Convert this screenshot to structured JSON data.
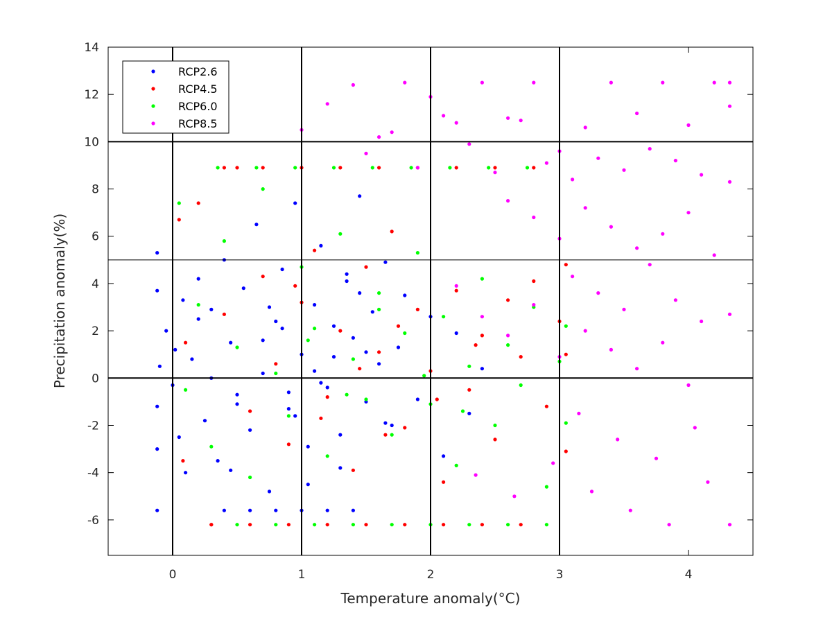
{
  "chart_data": {
    "type": "scatter",
    "title": "",
    "xlabel": "Temperature anomaly(°C)",
    "ylabel": "Precipitation anomaly(%)",
    "xlim": [
      -0.5,
      4.5
    ],
    "ylim": [
      -7.5,
      14
    ],
    "xticks": [
      0,
      1,
      2,
      3,
      4
    ],
    "xtick_labels": [
      "0",
      "1",
      "2",
      "3",
      "4"
    ],
    "yticks": [
      -6,
      -4,
      -2,
      0,
      2,
      4,
      6,
      8,
      10,
      12,
      14
    ],
    "ytick_labels": [
      "-6",
      "-4",
      "-2",
      "0",
      "2",
      "4",
      "6",
      "8",
      "10",
      "12",
      "14"
    ],
    "grid": false,
    "legend_position": "top-left",
    "reference_lines": {
      "thick_vertical_x": [
        0,
        1,
        2,
        3
      ],
      "thick_horizontal_y": [
        0,
        10
      ],
      "thin_horizontal_y": [
        5
      ]
    },
    "series": [
      {
        "name": "RCP2.6",
        "color": "#0000ff",
        "x": [
          -0.12,
          -0.12,
          -0.12,
          -0.12,
          -0.12,
          -0.1,
          -0.05,
          0.0,
          0.02,
          0.05,
          0.08,
          0.1,
          0.15,
          0.2,
          0.25,
          0.3,
          0.35,
          0.4,
          0.45,
          0.5,
          0.55,
          0.6,
          0.65,
          0.7,
          0.75,
          0.8,
          0.85,
          0.9,
          0.95,
          1.0,
          1.05,
          1.1,
          1.15,
          1.2,
          1.25,
          1.3,
          1.35,
          1.4,
          1.45,
          1.5,
          1.55,
          1.6,
          1.65,
          1.7,
          1.75,
          1.8,
          1.9,
          2.0,
          2.1,
          2.2,
          2.3,
          2.4,
          0.4,
          0.6,
          0.8,
          1.0,
          1.2,
          1.4,
          0.3,
          0.5,
          0.7,
          0.9,
          1.1,
          1.3,
          1.5,
          0.2,
          0.45,
          0.75,
          1.05,
          1.35,
          1.65,
          0.85,
          1.15,
          1.45,
          0.95,
          1.25
        ],
        "y": [
          5.3,
          3.7,
          -1.2,
          -3.0,
          -5.6,
          0.5,
          2.0,
          -0.3,
          1.2,
          -2.5,
          3.3,
          -4.0,
          0.8,
          4.2,
          -1.8,
          2.9,
          -3.5,
          5.0,
          1.5,
          -0.7,
          3.8,
          -2.2,
          6.5,
          0.2,
          -4.8,
          2.4,
          4.6,
          -1.3,
          7.4,
          1.0,
          -2.9,
          3.1,
          5.6,
          -0.4,
          2.2,
          -3.8,
          4.1,
          1.7,
          7.7,
          -1.0,
          2.8,
          0.6,
          4.9,
          -2.0,
          1.3,
          3.5,
          -0.9,
          2.6,
          -3.3,
          1.9,
          -1.5,
          0.4,
          -5.6,
          -5.6,
          -5.6,
          -5.6,
          -5.6,
          -5.6,
          0.0,
          -1.1,
          1.6,
          -0.6,
          0.3,
          -2.4,
          1.1,
          2.5,
          -3.9,
          3.0,
          -4.5,
          4.4,
          -1.9,
          2.1,
          -0.2,
          3.6,
          -1.6,
          0.9
        ]
      },
      {
        "name": "RCP4.5",
        "color": "#ff0000",
        "x": [
          0.05,
          0.08,
          0.1,
          0.2,
          0.3,
          0.4,
          0.5,
          0.6,
          0.7,
          0.8,
          0.9,
          1.0,
          1.1,
          1.2,
          1.3,
          1.4,
          1.5,
          1.6,
          1.7,
          1.8,
          1.9,
          2.0,
          2.1,
          2.2,
          2.3,
          2.4,
          2.5,
          2.6,
          2.7,
          2.8,
          2.9,
          3.0,
          3.05,
          3.05,
          3.05,
          0.3,
          0.6,
          0.9,
          1.2,
          1.5,
          1.8,
          2.1,
          2.4,
          2.7,
          0.4,
          0.7,
          1.0,
          1.3,
          1.6,
          1.9,
          2.2,
          2.5,
          2.8,
          1.15,
          1.45,
          1.75,
          2.05,
          2.35,
          0.95,
          1.65
        ],
        "y": [
          6.7,
          -3.5,
          1.5,
          7.4,
          -6.2,
          2.7,
          8.9,
          -1.4,
          4.3,
          0.6,
          -2.8,
          3.2,
          5.4,
          -0.8,
          2.0,
          -3.9,
          4.7,
          1.1,
          6.2,
          -2.1,
          2.9,
          0.3,
          -4.4,
          3.7,
          -0.5,
          1.8,
          -2.6,
          3.3,
          0.9,
          4.1,
          -1.2,
          2.4,
          -3.1,
          1.0,
          4.8,
          -6.2,
          -6.2,
          -6.2,
          -6.2,
          -6.2,
          -6.2,
          -6.2,
          -6.2,
          -6.2,
          8.9,
          8.9,
          8.9,
          8.9,
          8.9,
          8.9,
          8.9,
          8.9,
          8.9,
          -1.7,
          0.4,
          2.2,
          -0.9,
          1.4,
          3.9,
          -2.4
        ]
      },
      {
        "name": "RCP6.0",
        "color": "#00ff00",
        "x": [
          0.05,
          0.1,
          0.2,
          0.3,
          0.4,
          0.5,
          0.6,
          0.7,
          0.8,
          0.9,
          1.0,
          1.1,
          1.2,
          1.3,
          1.4,
          1.5,
          1.6,
          1.7,
          1.8,
          1.9,
          2.0,
          2.1,
          2.2,
          2.3,
          2.4,
          2.5,
          2.6,
          2.7,
          2.8,
          2.9,
          3.0,
          3.05,
          3.05,
          0.35,
          0.65,
          0.95,
          1.25,
          1.55,
          1.85,
          2.15,
          2.45,
          2.75,
          0.5,
          0.8,
          1.1,
          1.4,
          1.7,
          2.0,
          2.3,
          2.6,
          2.9,
          1.05,
          1.35,
          1.6,
          1.95,
          2.25
        ],
        "y": [
          7.4,
          -0.5,
          3.1,
          -2.9,
          5.8,
          1.3,
          -4.2,
          8.0,
          0.2,
          -1.6,
          4.7,
          2.1,
          -3.3,
          6.1,
          0.8,
          -0.9,
          3.6,
          -2.4,
          1.9,
          5.3,
          -1.1,
          2.6,
          -3.7,
          0.5,
          4.2,
          -2.0,
          1.4,
          -0.3,
          3.0,
          -4.6,
          0.7,
          2.2,
          -1.9,
          8.9,
          8.9,
          8.9,
          8.9,
          8.9,
          8.9,
          8.9,
          8.9,
          8.9,
          -6.2,
          -6.2,
          -6.2,
          -6.2,
          -6.2,
          -6.2,
          -6.2,
          -6.2,
          -6.2,
          1.6,
          -0.7,
          2.9,
          0.1,
          -1.4
        ]
      },
      {
        "name": "RCP8.5",
        "color": "#ff00ff",
        "x": [
          1.0,
          1.2,
          1.4,
          1.6,
          1.8,
          2.0,
          2.2,
          2.4,
          2.6,
          2.8,
          3.0,
          3.2,
          3.4,
          3.6,
          3.8,
          4.0,
          4.2,
          4.32,
          4.32,
          4.32,
          4.32,
          4.32,
          1.5,
          1.7,
          1.9,
          2.1,
          2.3,
          2.5,
          2.7,
          2.9,
          3.1,
          3.3,
          3.5,
          3.7,
          3.9,
          4.1,
          2.6,
          2.8,
          3.0,
          3.2,
          3.4,
          3.6,
          3.8,
          4.0,
          4.2,
          3.1,
          3.3,
          3.5,
          3.7,
          3.9,
          4.1,
          2.2,
          2.4,
          2.6,
          2.8,
          3.0,
          3.2,
          3.4,
          3.6,
          3.8,
          4.0,
          3.15,
          3.45,
          3.75,
          4.05,
          2.35,
          2.65,
          2.95,
          3.25,
          3.55,
          3.85,
          4.15
        ],
        "y": [
          10.5,
          11.6,
          12.4,
          10.2,
          12.5,
          11.9,
          10.8,
          12.5,
          11.0,
          12.5,
          9.6,
          10.6,
          12.5,
          11.2,
          12.5,
          10.7,
          12.5,
          12.5,
          11.5,
          8.3,
          2.7,
          -6.2,
          9.5,
          10.4,
          8.9,
          11.1,
          9.9,
          8.7,
          10.9,
          9.1,
          8.4,
          9.3,
          8.8,
          9.7,
          9.2,
          8.6,
          7.5,
          6.8,
          5.9,
          7.2,
          6.4,
          5.5,
          6.1,
          7.0,
          5.2,
          4.3,
          3.6,
          2.9,
          4.8,
          3.3,
          2.4,
          3.9,
          2.6,
          1.8,
          3.1,
          0.9,
          2.0,
          1.2,
          0.4,
          1.5,
          -0.3,
          -1.5,
          -2.6,
          -3.4,
          -2.1,
          -4.1,
          -5.0,
          -3.6,
          -4.8,
          -5.6,
          -6.2,
          -4.4
        ]
      }
    ]
  }
}
